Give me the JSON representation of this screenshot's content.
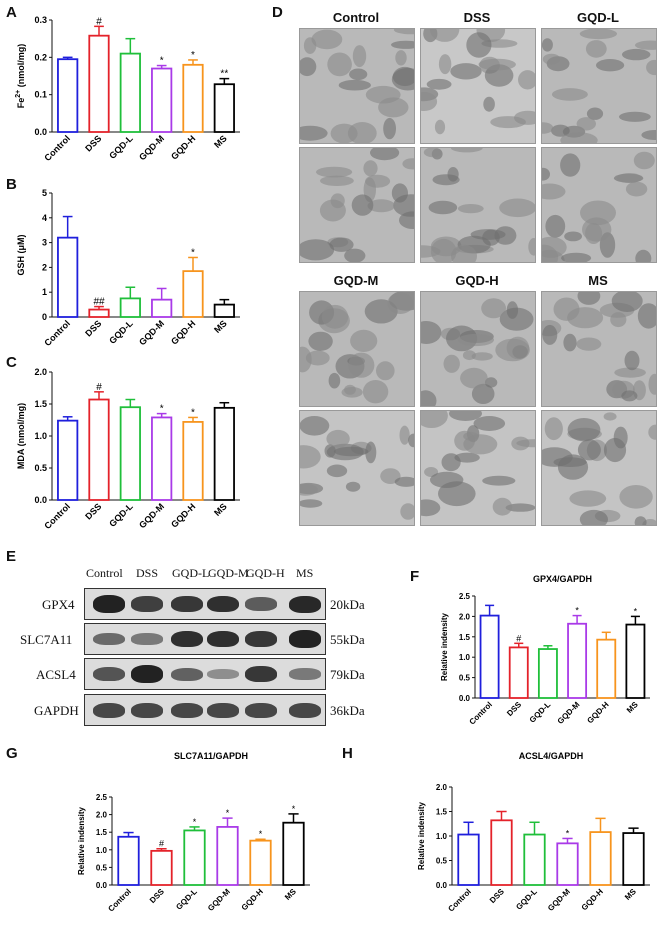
{
  "panel_letters": {
    "A": "A",
    "B": "B",
    "C": "C",
    "D": "D",
    "E": "E",
    "F": "F",
    "G": "G",
    "H": "H"
  },
  "groups": [
    "Control",
    "DSS",
    "GQD-L",
    "GQD-M",
    "GQD-H",
    "MS"
  ],
  "colors": [
    "#1f1fdc",
    "#e4222a",
    "#1fbf3a",
    "#a93ae8",
    "#f7941d",
    "#000000"
  ],
  "chart_data": [
    {
      "id": "A",
      "type": "bar",
      "title": "",
      "ylabel": "Fe2+ (nmol/mg)",
      "ylim": [
        0,
        0.3
      ],
      "yticks": [
        "0.0",
        "0.1",
        "0.2",
        "0.3"
      ],
      "categories": [
        "Control",
        "DSS",
        "GQD-L",
        "GQD-M",
        "GQD-H",
        "MS"
      ],
      "values": [
        0.195,
        0.258,
        0.21,
        0.17,
        0.18,
        0.128
      ],
      "errors": [
        0.005,
        0.025,
        0.04,
        0.008,
        0.013,
        0.015
      ],
      "annotations": [
        "",
        "#",
        "",
        "*",
        "*",
        "**"
      ]
    },
    {
      "id": "B",
      "type": "bar",
      "title": "",
      "ylabel": "GSH (μM)",
      "ylim": [
        0,
        5
      ],
      "yticks": [
        "0",
        "1",
        "2",
        "3",
        "4",
        "5"
      ],
      "categories": [
        "Control",
        "DSS",
        "GQD-L",
        "GQD-M",
        "GQD-H",
        "MS"
      ],
      "values": [
        3.2,
        0.3,
        0.75,
        0.7,
        1.85,
        0.5
      ],
      "errors": [
        0.85,
        0.12,
        0.45,
        0.45,
        0.55,
        0.2
      ],
      "annotations": [
        "",
        "##",
        "",
        "",
        "*",
        ""
      ]
    },
    {
      "id": "C",
      "type": "bar",
      "title": "",
      "ylabel": "MDA (nmol/mg)",
      "ylim": [
        0,
        2.0
      ],
      "yticks": [
        "0.0",
        "0.5",
        "1.0",
        "1.5",
        "2.0"
      ],
      "categories": [
        "Control",
        "DSS",
        "GQD-L",
        "GQD-M",
        "GQD-H",
        "MS"
      ],
      "values": [
        1.24,
        1.57,
        1.45,
        1.29,
        1.22,
        1.44
      ],
      "errors": [
        0.06,
        0.12,
        0.12,
        0.06,
        0.07,
        0.08
      ],
      "annotations": [
        "",
        "#",
        "",
        "*",
        "*",
        ""
      ]
    },
    {
      "id": "F",
      "type": "bar",
      "title": "GPX4/GAPDH",
      "ylabel": "Relative indensity",
      "ylim": [
        0,
        2.5
      ],
      "yticks": [
        "0.0",
        "0.5",
        "1.0",
        "1.5",
        "2.0",
        "2.5"
      ],
      "categories": [
        "Control",
        "DSS",
        "GQD-L",
        "GQD-M",
        "GQD-H",
        "MS"
      ],
      "values": [
        2.02,
        1.24,
        1.2,
        1.82,
        1.43,
        1.8
      ],
      "errors": [
        0.25,
        0.1,
        0.08,
        0.2,
        0.18,
        0.2
      ],
      "annotations": [
        "",
        "#",
        "",
        "*",
        "",
        "*"
      ]
    },
    {
      "id": "G",
      "type": "bar",
      "title": "SLC7A11/GAPDH",
      "ylabel": "Relative indensity",
      "ylim": [
        0,
        2.5
      ],
      "yticks": [
        "0.0",
        "0.5",
        "1.0",
        "1.5",
        "2.0",
        "2.5"
      ],
      "categories": [
        "Control",
        "DSS",
        "GQD-L",
        "GQD-M",
        "GQD-H",
        "MS"
      ],
      "values": [
        1.37,
        0.97,
        1.55,
        1.65,
        1.26,
        1.77
      ],
      "errors": [
        0.12,
        0.06,
        0.1,
        0.25,
        0.04,
        0.25
      ],
      "annotations": [
        "",
        "#",
        "*",
        "*",
        "*",
        "*"
      ]
    },
    {
      "id": "H",
      "type": "bar",
      "title": "ACSL4/GAPDH",
      "ylabel": "Relative indensity",
      "ylim": [
        0,
        2.0
      ],
      "yticks": [
        "0.0",
        "0.5",
        "1.0",
        "1.5",
        "2.0"
      ],
      "categories": [
        "Control",
        "DSS",
        "GQD-L",
        "GQD-M",
        "GQD-H",
        "MS"
      ],
      "values": [
        1.03,
        1.32,
        1.03,
        0.85,
        1.08,
        1.06
      ],
      "errors": [
        0.25,
        0.18,
        0.25,
        0.1,
        0.28,
        0.1
      ],
      "annotations": [
        "",
        "",
        "",
        "*",
        "",
        ""
      ]
    }
  ],
  "em": {
    "top_labels": [
      "Control",
      "DSS",
      "GQD-L"
    ],
    "bottom_labels": [
      "GQD-M",
      "GQD-H",
      "MS"
    ]
  },
  "western": {
    "lane_labels": [
      "Control",
      "DSS",
      "GQD-L",
      "GQD-M",
      "GQD-H",
      "MS"
    ],
    "proteins": [
      "GPX4",
      "SLC7A11",
      "ACSL4",
      "GAPDH"
    ],
    "sizes": [
      "20kDa",
      "55kDa",
      "79kDa",
      "36kDa"
    ],
    "band_intensity": [
      [
        0.95,
        0.75,
        0.8,
        0.85,
        0.55,
        0.9
      ],
      [
        0.45,
        0.35,
        0.85,
        0.85,
        0.8,
        0.95
      ],
      [
        0.6,
        0.95,
        0.5,
        0.2,
        0.8,
        0.35
      ],
      [
        0.7,
        0.7,
        0.7,
        0.7,
        0.7,
        0.7
      ]
    ]
  }
}
